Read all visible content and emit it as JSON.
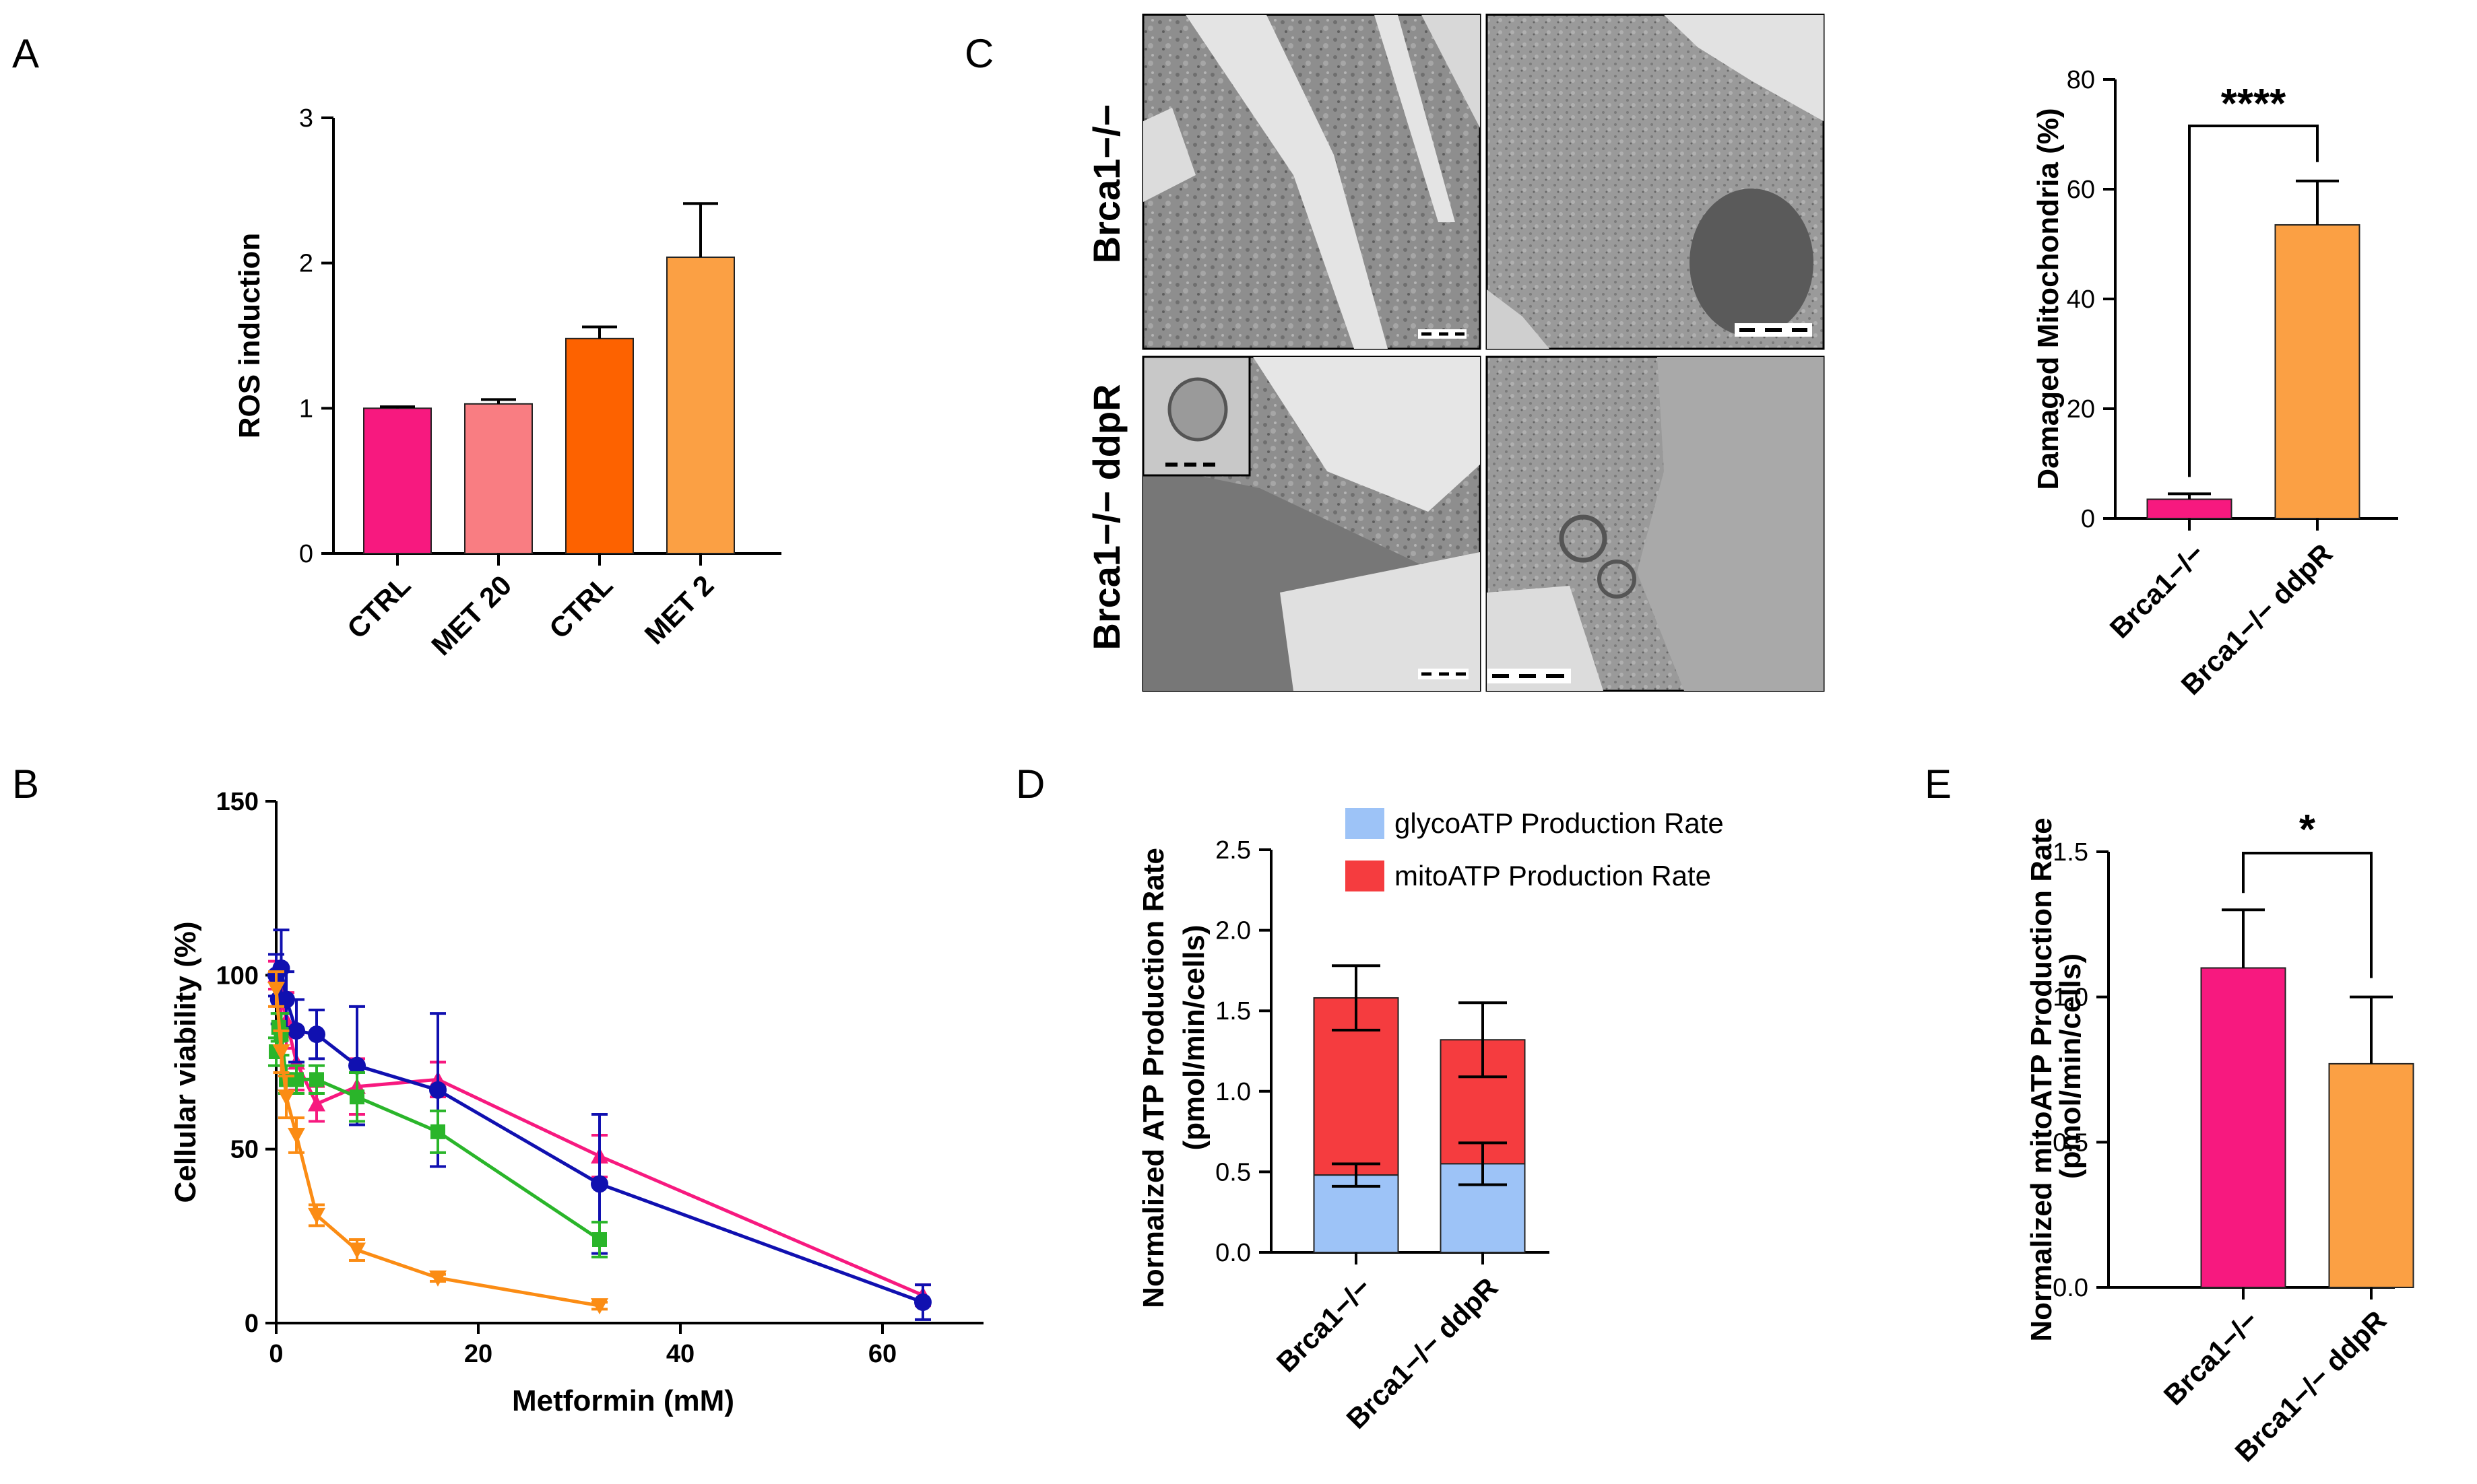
{
  "panels": {
    "A": "A",
    "B": "B",
    "C": "C",
    "D": "D",
    "E": "E"
  },
  "colors": {
    "pink": "#f7197f",
    "light_pink": "#f97d82",
    "dark_orange": "#fd6200",
    "orange": "#fba044",
    "blue": "#1010b0",
    "green": "#2ab52a",
    "light_blue": "#9dc3f7",
    "red": "#f53c3f"
  },
  "micrograph": {
    "row_labels": [
      "Brca1−/−",
      "Brca1−/− ddpR"
    ]
  },
  "chart_data": [
    {
      "panel": "A",
      "type": "bar",
      "ylabel": "ROS induction",
      "ylim": [
        0,
        3
      ],
      "yticks": [
        0,
        1,
        2,
        3
      ],
      "categories": [
        "CTRL",
        "MET 20",
        "CTRL",
        "MET 2"
      ],
      "values": [
        1.0,
        1.03,
        1.48,
        2.04
      ],
      "errors": [
        0.01,
        0.03,
        0.08,
        0.37
      ],
      "bar_colors": [
        "#f7197f",
        "#f97d82",
        "#fd6200",
        "#fba044"
      ]
    },
    {
      "panel": "B",
      "type": "line",
      "xlabel": "Metformin (mM)",
      "ylabel": "Cellular viability (%)",
      "xlim": [
        0,
        70
      ],
      "ylim": [
        0,
        150
      ],
      "xticks": [
        0,
        20,
        40,
        60
      ],
      "yticks": [
        0,
        50,
        100,
        150
      ],
      "series": [
        {
          "name": "pink",
          "color": "#f7197f",
          "marker": "triangle-up",
          "x": [
            0,
            0.5,
            1,
            2,
            4,
            8,
            16,
            32,
            64
          ],
          "y": [
            100,
            95,
            87,
            75,
            63,
            68,
            70,
            48,
            8
          ],
          "err": [
            4,
            6,
            8,
            8,
            5,
            8,
            5,
            6,
            3
          ]
        },
        {
          "name": "blue",
          "color": "#1010b0",
          "marker": "circle",
          "x": [
            0,
            0.25,
            0.5,
            1,
            2,
            4,
            8,
            16,
            32,
            64
          ],
          "y": [
            100,
            93,
            102,
            93,
            84,
            83,
            74,
            67,
            40,
            6
          ],
          "err": [
            6,
            7,
            11,
            8,
            9,
            7,
            17,
            22,
            20,
            5
          ]
        },
        {
          "name": "green",
          "color": "#2ab52a",
          "marker": "square",
          "x": [
            0,
            0.25,
            0.5,
            1,
            2,
            4,
            8,
            16,
            32
          ],
          "y": [
            78,
            85,
            83,
            70,
            70,
            70,
            65,
            55,
            24
          ],
          "err": [
            4,
            4,
            6,
            4,
            4,
            4,
            7,
            6,
            5
          ]
        },
        {
          "name": "orange",
          "color": "#fb8c14",
          "marker": "triangle-down",
          "x": [
            0,
            0.5,
            1,
            2,
            4,
            8,
            16,
            32
          ],
          "y": [
            96,
            78,
            65,
            54,
            31,
            21,
            13,
            5
          ],
          "err": [
            5,
            6,
            6,
            5,
            3,
            3,
            1,
            1
          ]
        }
      ]
    },
    {
      "panel": "C",
      "type": "bar",
      "ylabel": "Damaged Mitochondria (%)",
      "ylim": [
        0,
        80
      ],
      "yticks": [
        0,
        20,
        40,
        60,
        80
      ],
      "categories": [
        "Brca1−/−",
        "Brca1−/− ddpR"
      ],
      "values": [
        3.5,
        53.5
      ],
      "errors": [
        1,
        8
      ],
      "bar_colors": [
        "#f7197f",
        "#fba044"
      ],
      "significance": "****"
    },
    {
      "panel": "D",
      "type": "bar",
      "stacked": true,
      "ylabel_line1": "Normalized ATP Production Rate",
      "ylabel_line2": "(pmol/min/cells)",
      "ylim": [
        0,
        2.5
      ],
      "yticks": [
        "0.0",
        "0.5",
        "1.0",
        "1.5",
        "2.0",
        "2.5"
      ],
      "categories": [
        "Brca1−/−",
        "Brca1−/− ddpR"
      ],
      "series": [
        {
          "name": "glycoATP Production Rate",
          "color": "#9dc3f7",
          "values": [
            0.48,
            0.55
          ],
          "errors": [
            0.07,
            0.13
          ]
        },
        {
          "name": "mitoATP Production Rate",
          "color": "#f53c3f",
          "values": [
            1.1,
            0.77
          ],
          "errors": [
            0.2,
            0.23
          ]
        }
      ]
    },
    {
      "panel": "E",
      "type": "bar",
      "ylabel_line1": "Normalized mitoATP Production Rate",
      "ylabel_line2": "(pmol/min/cells)",
      "ylim": [
        0,
        1.5
      ],
      "yticks": [
        "0.0",
        "0.5",
        "1.0",
        "1.5"
      ],
      "categories": [
        "Brca1−/−",
        "Brca1−/− ddpR"
      ],
      "values": [
        1.1,
        0.77
      ],
      "errors": [
        0.2,
        0.23
      ],
      "bar_colors": [
        "#f7197f",
        "#fba044"
      ],
      "significance": "*"
    }
  ]
}
